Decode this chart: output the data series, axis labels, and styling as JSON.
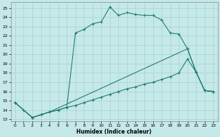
{
  "bg_color": "#c5e8e8",
  "line_color": "#1e7d6e",
  "grid_color": "#a8d0d0",
  "xlabel": "Humidex (Indice chaleur)",
  "xlim": [
    -0.5,
    23.5
  ],
  "ylim": [
    12.8,
    25.6
  ],
  "xticks": [
    0,
    1,
    2,
    3,
    4,
    5,
    6,
    7,
    8,
    9,
    10,
    11,
    12,
    13,
    14,
    15,
    16,
    17,
    18,
    19,
    20,
    21,
    22,
    23
  ],
  "yticks": [
    13,
    14,
    15,
    16,
    17,
    18,
    19,
    20,
    21,
    22,
    23,
    24,
    25
  ],
  "curve1_x": [
    0,
    1,
    2,
    3,
    4,
    5,
    6,
    7,
    8,
    9,
    10,
    11,
    12,
    13,
    14,
    15,
    16,
    17,
    18,
    19,
    20,
    21,
    22,
    23
  ],
  "curve1_y": [
    14.8,
    14.0,
    13.2,
    13.5,
    13.8,
    14.0,
    14.3,
    22.3,
    22.7,
    23.3,
    23.5,
    25.1,
    24.2,
    24.5,
    24.3,
    24.2,
    24.2,
    23.7,
    22.3,
    22.2,
    20.6,
    18.1,
    16.1,
    16.0
  ],
  "curve2_x": [
    0,
    2,
    3,
    4,
    20,
    21,
    22,
    23
  ],
  "curve2_y": [
    14.8,
    13.2,
    13.5,
    13.8,
    20.6,
    18.1,
    16.1,
    16.0
  ],
  "curve3_x": [
    0,
    2,
    3,
    4,
    5,
    6,
    7,
    8,
    9,
    10,
    11,
    12,
    13,
    14,
    15,
    16,
    17,
    18,
    19,
    20,
    21,
    22,
    23
  ],
  "curve3_y": [
    14.8,
    13.2,
    13.5,
    13.8,
    14.0,
    14.3,
    14.5,
    14.8,
    15.1,
    15.4,
    15.7,
    16.0,
    16.3,
    16.5,
    16.8,
    17.0,
    17.3,
    17.6,
    18.0,
    19.5,
    18.1,
    16.1,
    16.0
  ]
}
